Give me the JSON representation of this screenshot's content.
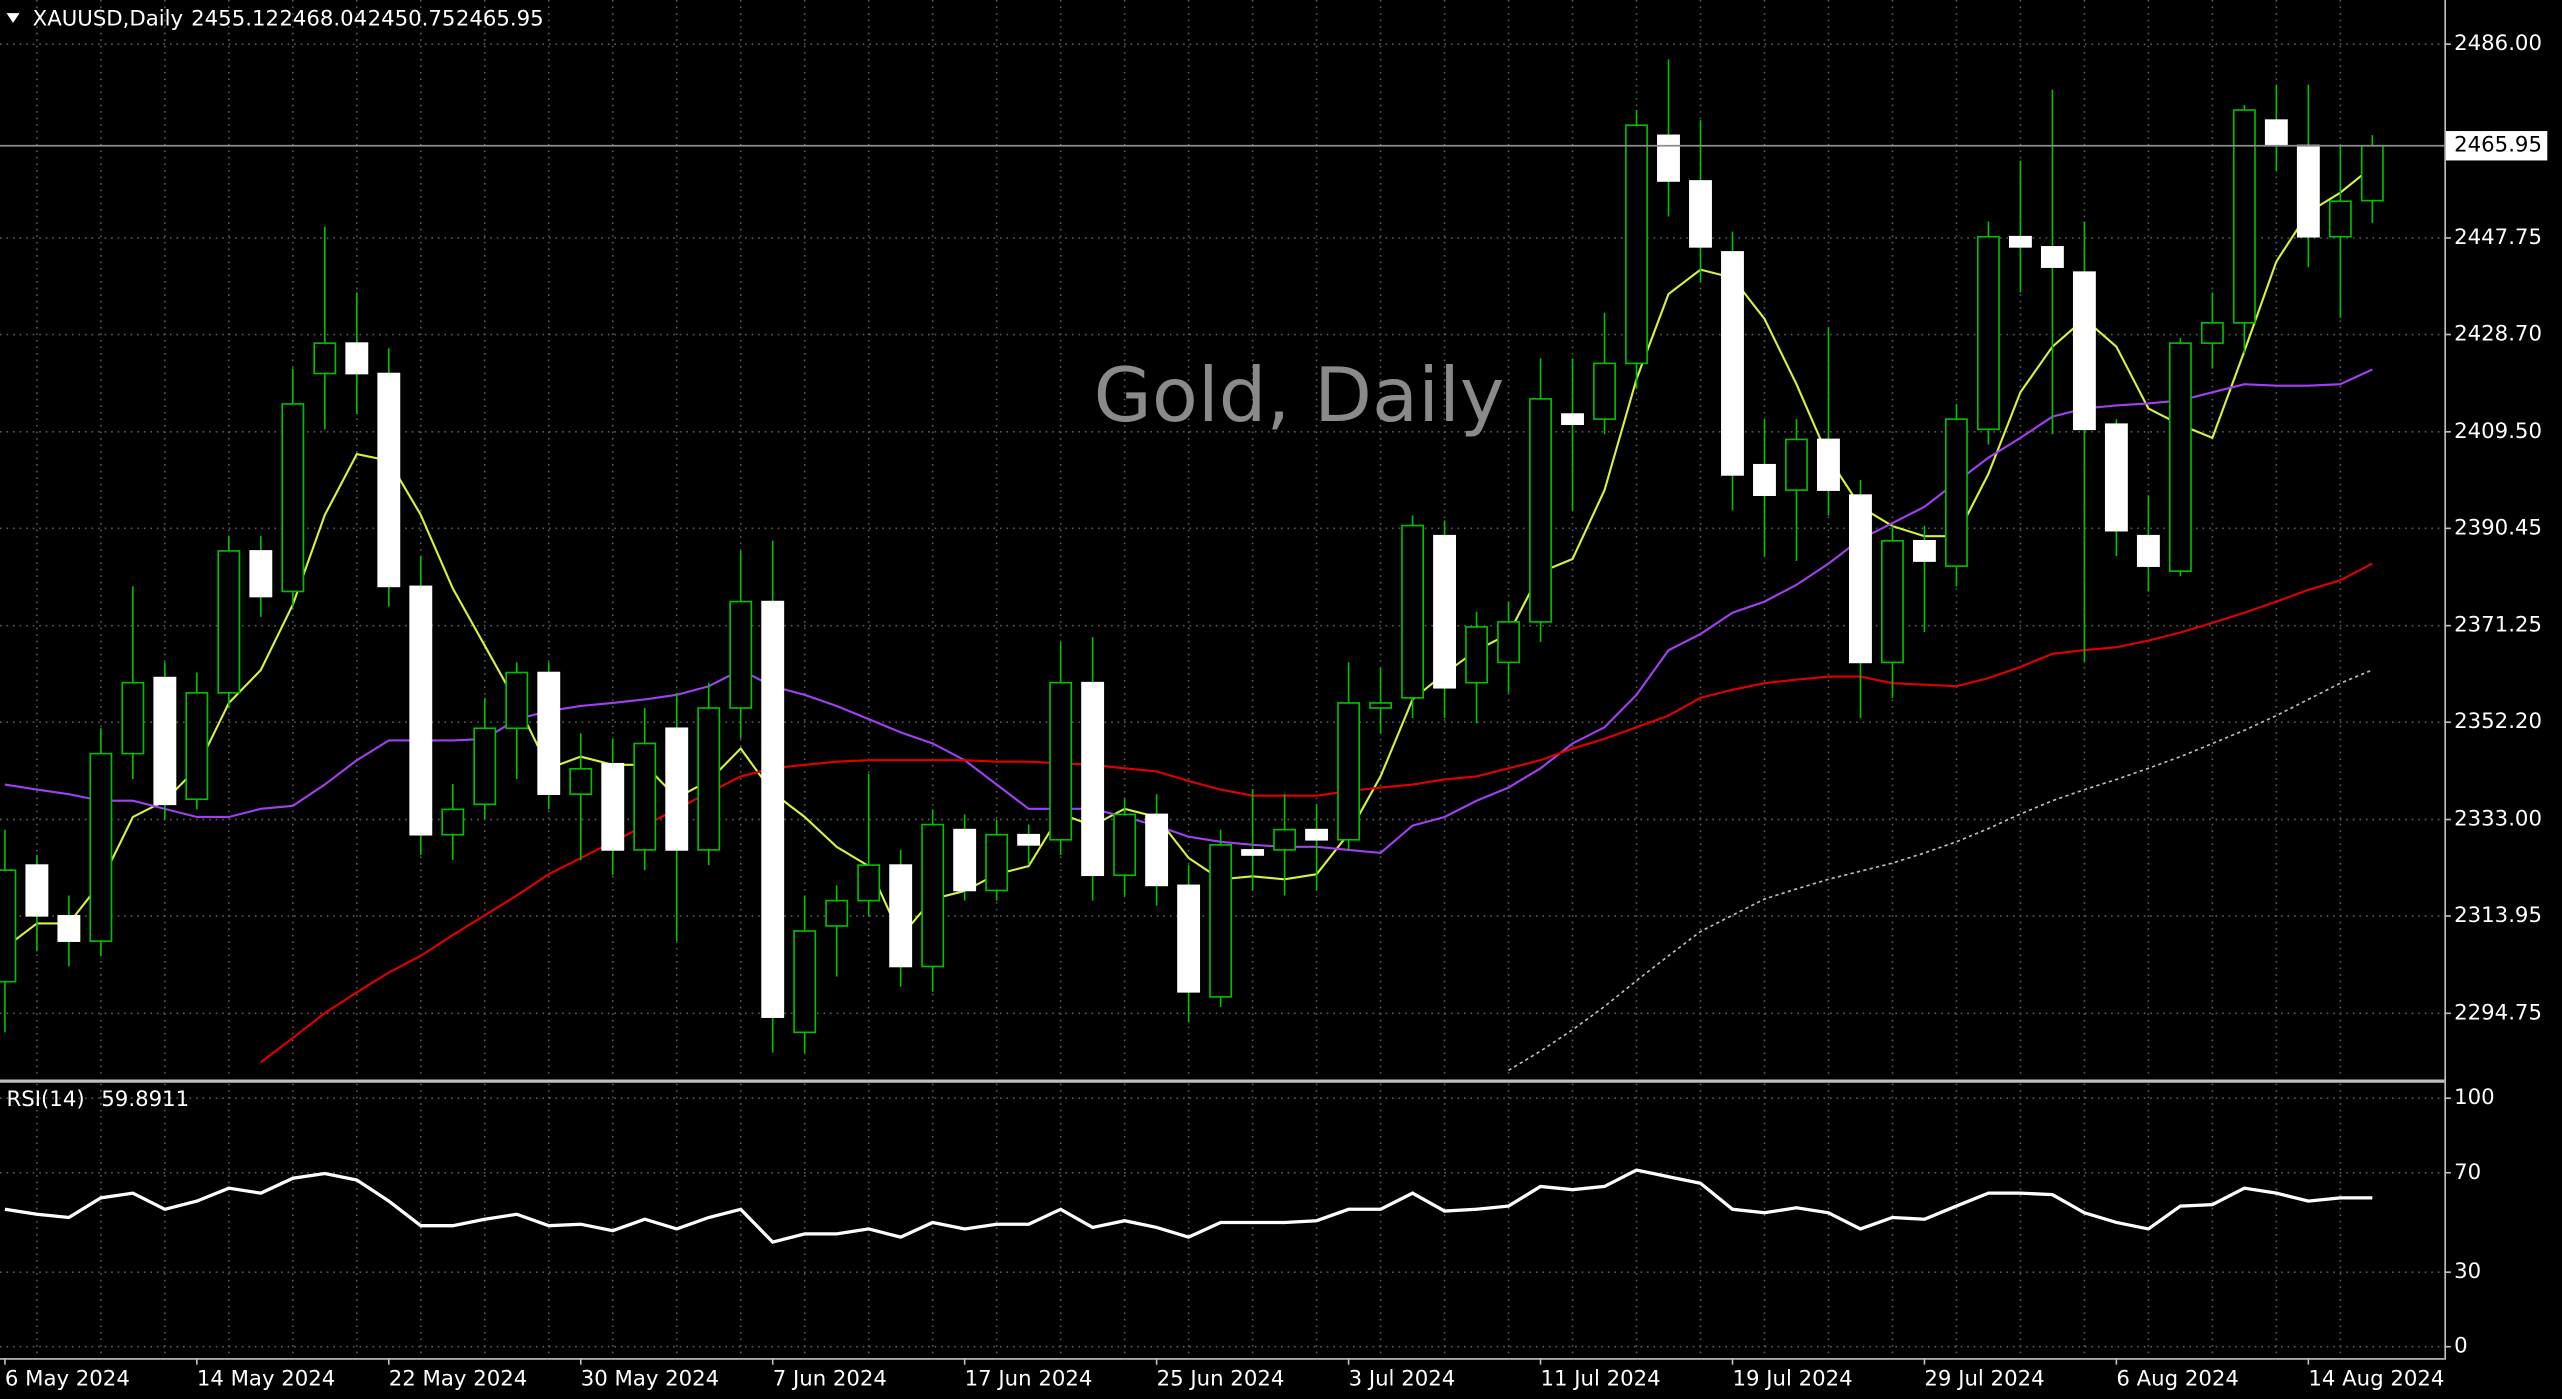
{
  "chart_data": {
    "type": "candlestick",
    "symbol": "XAUUSD,Daily",
    "watermark": "Gold, Daily",
    "categories": [
      "6 May 2024",
      null,
      null,
      null,
      null,
      null,
      "14 May 2024",
      null,
      null,
      null,
      null,
      null,
      "22 May 2024",
      null,
      null,
      null,
      null,
      null,
      "30 May 2024",
      null,
      null,
      null,
      null,
      null,
      "7 Jun 2024",
      null,
      null,
      null,
      null,
      null,
      "17 Jun 2024",
      null,
      null,
      null,
      null,
      null,
      "25 Jun 2024",
      null,
      null,
      null,
      null,
      null,
      "3 Jul 2024",
      null,
      null,
      null,
      null,
      null,
      "11 Jul 2024",
      null,
      null,
      null,
      null,
      null,
      "19 Jul 2024",
      null,
      null,
      null,
      null,
      null,
      "29 Jul 2024",
      null,
      null,
      null,
      null,
      null,
      "6 Aug 2024",
      null,
      null,
      null,
      null,
      null,
      "14 Aug 2024",
      null,
      null
    ],
    "open": [
      2301,
      2324,
      2314,
      2309,
      2346,
      2361,
      2337,
      2358,
      2386,
      2378,
      2421,
      2427,
      2421,
      2379,
      2330,
      2336,
      2351,
      2362,
      2338,
      2344,
      2327,
      2351,
      2327,
      2355,
      2376,
      2291,
      2312,
      2317,
      2324,
      2304,
      2331,
      2319,
      2330,
      2329,
      2360,
      2322,
      2334,
      2320,
      2298,
      2327,
      2327,
      2331,
      2329,
      2355,
      2357,
      2389,
      2360,
      2364,
      2372,
      2413,
      2412,
      2423,
      2468,
      2459,
      2445,
      2403,
      2398,
      2408,
      2397,
      2364,
      2388,
      2383,
      2410,
      2448,
      2446,
      2441,
      2411,
      2389,
      2382,
      2427,
      2431,
      2471,
      2466,
      2448,
      2455.12
    ],
    "high": [
      2331,
      2326,
      2318,
      2351,
      2379,
      2364,
      2362,
      2389,
      2389,
      2422,
      2450,
      2437,
      2426,
      2385,
      2340,
      2357,
      2364,
      2364,
      2350,
      2349,
      2355,
      2358,
      2360,
      2386,
      2388,
      2318,
      2320,
      2342,
      2327,
      2335,
      2334,
      2333,
      2332,
      2368,
      2369,
      2337,
      2338,
      2324,
      2331,
      2339,
      2338,
      2336,
      2364,
      2363,
      2393,
      2392,
      2374,
      2376,
      2424,
      2424,
      2433,
      2473,
      2483,
      2471,
      2449,
      2412,
      2412,
      2430,
      2400,
      2391,
      2391,
      2415,
      2451,
      2463,
      2477,
      2451,
      2412,
      2397,
      2428,
      2437,
      2474,
      2478,
      2478,
      2466,
      2468.04
    ],
    "low": [
      2291,
      2307,
      2304,
      2306,
      2341,
      2333,
      2335,
      2355,
      2373,
      2375,
      2410,
      2413,
      2375,
      2326,
      2325,
      2333,
      2341,
      2335,
      2325,
      2322,
      2323,
      2309,
      2324,
      2349,
      2287,
      2287,
      2302,
      2314,
      2300,
      2299,
      2317,
      2317,
      2324,
      2326,
      2317,
      2318,
      2316,
      2293,
      2296,
      2319,
      2318,
      2319,
      2327,
      2350,
      2353,
      2353,
      2352,
      2358,
      2368,
      2394,
      2409,
      2418,
      2452,
      2439,
      2394,
      2385,
      2384,
      2393,
      2353,
      2357,
      2370,
      2379,
      2407,
      2437,
      2409,
      2364,
      2385,
      2378,
      2381,
      2422,
      2425,
      2461,
      2442,
      2432,
      2450.75
    ],
    "close": [
      2323,
      2314,
      2309,
      2346,
      2360,
      2336,
      2358,
      2386,
      2377,
      2415,
      2427,
      2421,
      2379,
      2330,
      2335,
      2351,
      2362,
      2338,
      2343,
      2327,
      2348,
      2327,
      2355,
      2376,
      2294,
      2311,
      2317,
      2324,
      2304,
      2332,
      2319,
      2330,
      2328,
      2360,
      2322,
      2334,
      2320,
      2299,
      2328,
      2326,
      2331,
      2329,
      2356,
      2356,
      2391,
      2359,
      2371,
      2372,
      2416,
      2411,
      2423,
      2470,
      2459,
      2446,
      2401,
      2397,
      2408,
      2398,
      2364,
      2388,
      2384,
      2412,
      2448,
      2446,
      2442,
      2410,
      2390,
      2383,
      2427,
      2431,
      2473,
      2466,
      2448,
      2455,
      2465.95
    ],
    "up_color": "#00c000",
    "down_color": "#ffffff",
    "wick_color": "#00c000",
    "ylim": [
      2281.86,
      2494.71
    ],
    "yticks": [
      {
        "value": 2486,
        "label": "2486.00"
      },
      {
        "value": 2447.75,
        "label": "2447.75"
      },
      {
        "value": 2428.7,
        "label": "2428.70"
      },
      {
        "value": 2409.5,
        "label": "2409.50"
      },
      {
        "value": 2390.45,
        "label": "2390.45"
      },
      {
        "value": 2371.25,
        "label": "2371.25"
      },
      {
        "value": 2352.2,
        "label": "2352.20"
      },
      {
        "value": 2333,
        "label": "2333.00"
      },
      {
        "value": 2313.95,
        "label": "2313.95"
      },
      {
        "value": 2294.75,
        "label": "2294.75"
      }
    ],
    "grid": true,
    "series": [
      {
        "color": "#d8f040",
        "style": "solid",
        "values": [
          2307.7,
          2312.5,
          2312.5,
          2320.6,
          2333.5,
          2336.7,
          2343.1,
          2356.0,
          2362.5,
          2375.4,
          2393.1,
          2405.1,
          2403.8,
          2393.1,
          2378.6,
          2367.3,
          2356.0,
          2343.1,
          2345.4,
          2343.8,
          2343.8,
          2337.3,
          2340.6,
          2347.0,
          2338.3,
          2333.5,
          2327.6,
          2323.8,
          2309.9,
          2317.3,
          2318.9,
          2322.2,
          2323.8,
          2334.1,
          2331.8,
          2335.1,
          2333.5,
          2325.4,
          2321.2,
          2321.8,
          2321.2,
          2322.2,
          2330.2,
          2341.5,
          2356.7,
          2361.8,
          2366.4,
          2369.6,
          2381.8,
          2384.4,
          2398.0,
          2419.9,
          2436.7,
          2441.5,
          2439.9,
          2431.8,
          2418.9,
          2404.4,
          2394.7,
          2390.9,
          2388.9,
          2388.9,
          2401.2,
          2417.3,
          2426.3,
          2431.8,
          2426.3,
          2414.1,
          2410.9,
          2408.3,
          2425.4,
          2443.1,
          2452.8,
          2456.7,
          2461.8
        ]
      },
      {
        "color": "#a040f0",
        "style": "solid",
        "values": [
          2339.9,
          2338.9,
          2338.0,
          2336.7,
          2336.7,
          2335.1,
          2333.5,
          2333.5,
          2335.1,
          2335.7,
          2339.9,
          2344.7,
          2348.6,
          2348.6,
          2348.6,
          2348.9,
          2352.8,
          2354.4,
          2355.4,
          2356.0,
          2356.7,
          2357.6,
          2359.3,
          2362.5,
          2359.3,
          2357.6,
          2355.4,
          2352.8,
          2350.2,
          2348.0,
          2344.7,
          2339.9,
          2335.1,
          2335.1,
          2335.1,
          2333.5,
          2331.8,
          2329.6,
          2328.6,
          2328.0,
          2327.6,
          2327.6,
          2327.0,
          2326.4,
          2331.8,
          2333.5,
          2336.7,
          2339.3,
          2343.1,
          2348.0,
          2351.2,
          2357.6,
          2366.4,
          2369.6,
          2373.8,
          2376.0,
          2379.3,
          2383.5,
          2388.3,
          2391.5,
          2394.7,
          2399.6,
          2404.4,
          2408.3,
          2412.5,
          2414.1,
          2414.7,
          2415.1,
          2415.7,
          2417.3,
          2418.9,
          2418.6,
          2418.6,
          2418.9,
          2421.8
        ]
      },
      {
        "color": "#e00000",
        "style": "solid",
        "values": [
          null,
          null,
          null,
          null,
          null,
          null,
          null,
          null,
          2285.1,
          2289.9,
          2294.8,
          2298.9,
          2302.8,
          2306.1,
          2310.2,
          2314.1,
          2318.0,
          2322.2,
          2325.4,
          2328.6,
          2331.8,
          2335.1,
          2338.3,
          2341.5,
          2343.1,
          2343.8,
          2344.4,
          2344.7,
          2344.7,
          2344.7,
          2344.7,
          2344.4,
          2344.4,
          2344.1,
          2343.8,
          2343.1,
          2342.5,
          2340.6,
          2338.9,
          2337.7,
          2337.7,
          2337.7,
          2338.6,
          2339.3,
          2339.9,
          2340.9,
          2341.5,
          2343.1,
          2344.7,
          2347.0,
          2348.9,
          2351.2,
          2353.5,
          2357.0,
          2358.6,
          2359.9,
          2360.6,
          2361.2,
          2361.2,
          2359.9,
          2359.6,
          2359.3,
          2360.9,
          2363.1,
          2365.7,
          2366.4,
          2367.0,
          2368.3,
          2369.9,
          2371.8,
          2373.8,
          2376.0,
          2378.3,
          2380.2,
          2383.5
        ]
      },
      {
        "color": "#c0c0c0",
        "style": "dotted",
        "values": [
          null,
          null,
          null,
          null,
          null,
          null,
          null,
          null,
          null,
          null,
          null,
          null,
          null,
          null,
          null,
          null,
          null,
          null,
          null,
          null,
          null,
          null,
          null,
          null,
          null,
          null,
          null,
          null,
          null,
          null,
          null,
          null,
          null,
          null,
          null,
          null,
          null,
          null,
          null,
          null,
          null,
          null,
          null,
          null,
          null,
          null,
          null,
          2283.5,
          2287.3,
          2291.5,
          2296.1,
          2301.2,
          2306.1,
          2310.9,
          2314.1,
          2317.3,
          2319.3,
          2321.2,
          2322.8,
          2324.4,
          2326.4,
          2328.6,
          2331.2,
          2334.1,
          2336.7,
          2338.9,
          2340.9,
          2343.1,
          2345.4,
          2348.0,
          2350.6,
          2353.5,
          2356.7,
          2359.9,
          2362.5
        ]
      }
    ],
    "rsi": {
      "label": "RSI(14)",
      "color": "#ffffff",
      "ylim": [
        -4.6,
        105.9
      ],
      "yticks": [
        0,
        30,
        70,
        100
      ],
      "values": [
        55.3,
        53.3,
        52.0,
        59.9,
        61.8,
        55.3,
        58.6,
        63.8,
        61.8,
        67.8,
        69.7,
        67.1,
        58.6,
        48.7,
        48.7,
        51.3,
        53.3,
        48.7,
        49.3,
        46.7,
        51.3,
        47.4,
        52.0,
        55.3,
        42.1,
        45.4,
        45.4,
        47.4,
        44.1,
        50.0,
        47.4,
        49.3,
        49.3,
        55.3,
        48.0,
        50.7,
        48.0,
        44.1,
        50.0,
        50.0,
        50.0,
        50.7,
        55.3,
        55.3,
        61.8,
        54.6,
        55.3,
        56.6,
        64.5,
        63.2,
        64.5,
        71.1,
        68.4,
        65.8,
        55.3,
        53.9,
        55.9,
        53.9,
        47.4,
        52.0,
        51.3,
        56.6,
        61.8,
        61.8,
        61.2,
        53.9,
        50.0,
        47.4,
        56.6,
        57.2,
        63.8,
        61.8,
        58.6,
        59.9,
        59.8911
      ]
    }
  }
}
